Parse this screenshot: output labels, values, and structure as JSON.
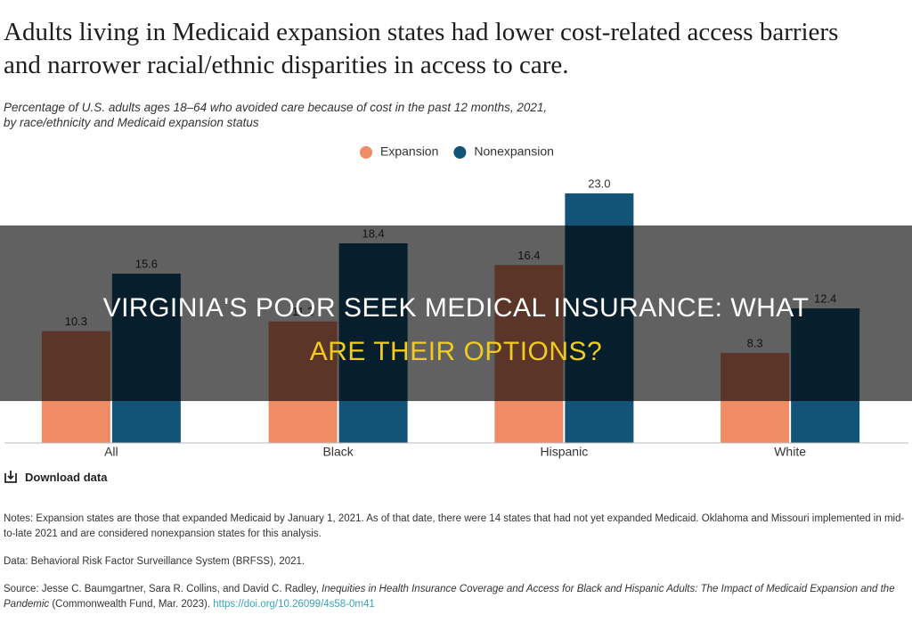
{
  "chart_data": {
    "type": "bar",
    "title": [
      "Adults living in Medicaid expansion states had lower cost-related access barriers",
      "and narrower racial/ethnic disparities in access to care."
    ],
    "subtitle": [
      "Percentage of U.S. adults ages 18–64 who avoided care because of cost in the past 12 months, 2021,",
      "by race/ethnicity and Medicaid expansion status"
    ],
    "categories": [
      "All",
      "Black",
      "Hispanic",
      "White"
    ],
    "series": [
      {
        "name": "Expansion",
        "color": "#ef8c66",
        "values": [
          10.3,
          11.2,
          16.4,
          8.3
        ]
      },
      {
        "name": "Nonexpansion",
        "color": "#145378",
        "values": [
          15.6,
          18.4,
          23,
          12.4
        ],
        "value_labels": [
          "15.6",
          "18.4",
          "23.0",
          "12.4"
        ]
      }
    ],
    "legend": "top"
  },
  "download_label": "Download data",
  "notes": [
    "Notes: Expansion states are those that expanded Medicaid by January 1, 2021. As of that date, there were 14 states that had not yet expanded Medicaid. Oklahoma and Missouri implemented in mid-to-late 2021 and are considered nonexpansion states for this analysis.",
    "Data: Behavioral Risk Factor Surveillance System (BRFSS), 2021."
  ],
  "source": {
    "prefix": "Source: Jesse C. Baumgartner, Sara R. Collins, and David C. Radley, ",
    "title": "Inequities in Health Insurance Coverage and Access for Black and Hispanic Adults: The Impact of Medicaid Expansion and the Pandemic",
    "suffix": " (Commonwealth Fund, Mar. 2023). ",
    "link": "https://doi.org/10.26099/4s58-0m41"
  },
  "overlay_title": [
    "VIRGINIA'S POOR SEEK MEDICAL INSURANCE: WHAT",
    "ARE THEIR OPTIONS?"
  ]
}
